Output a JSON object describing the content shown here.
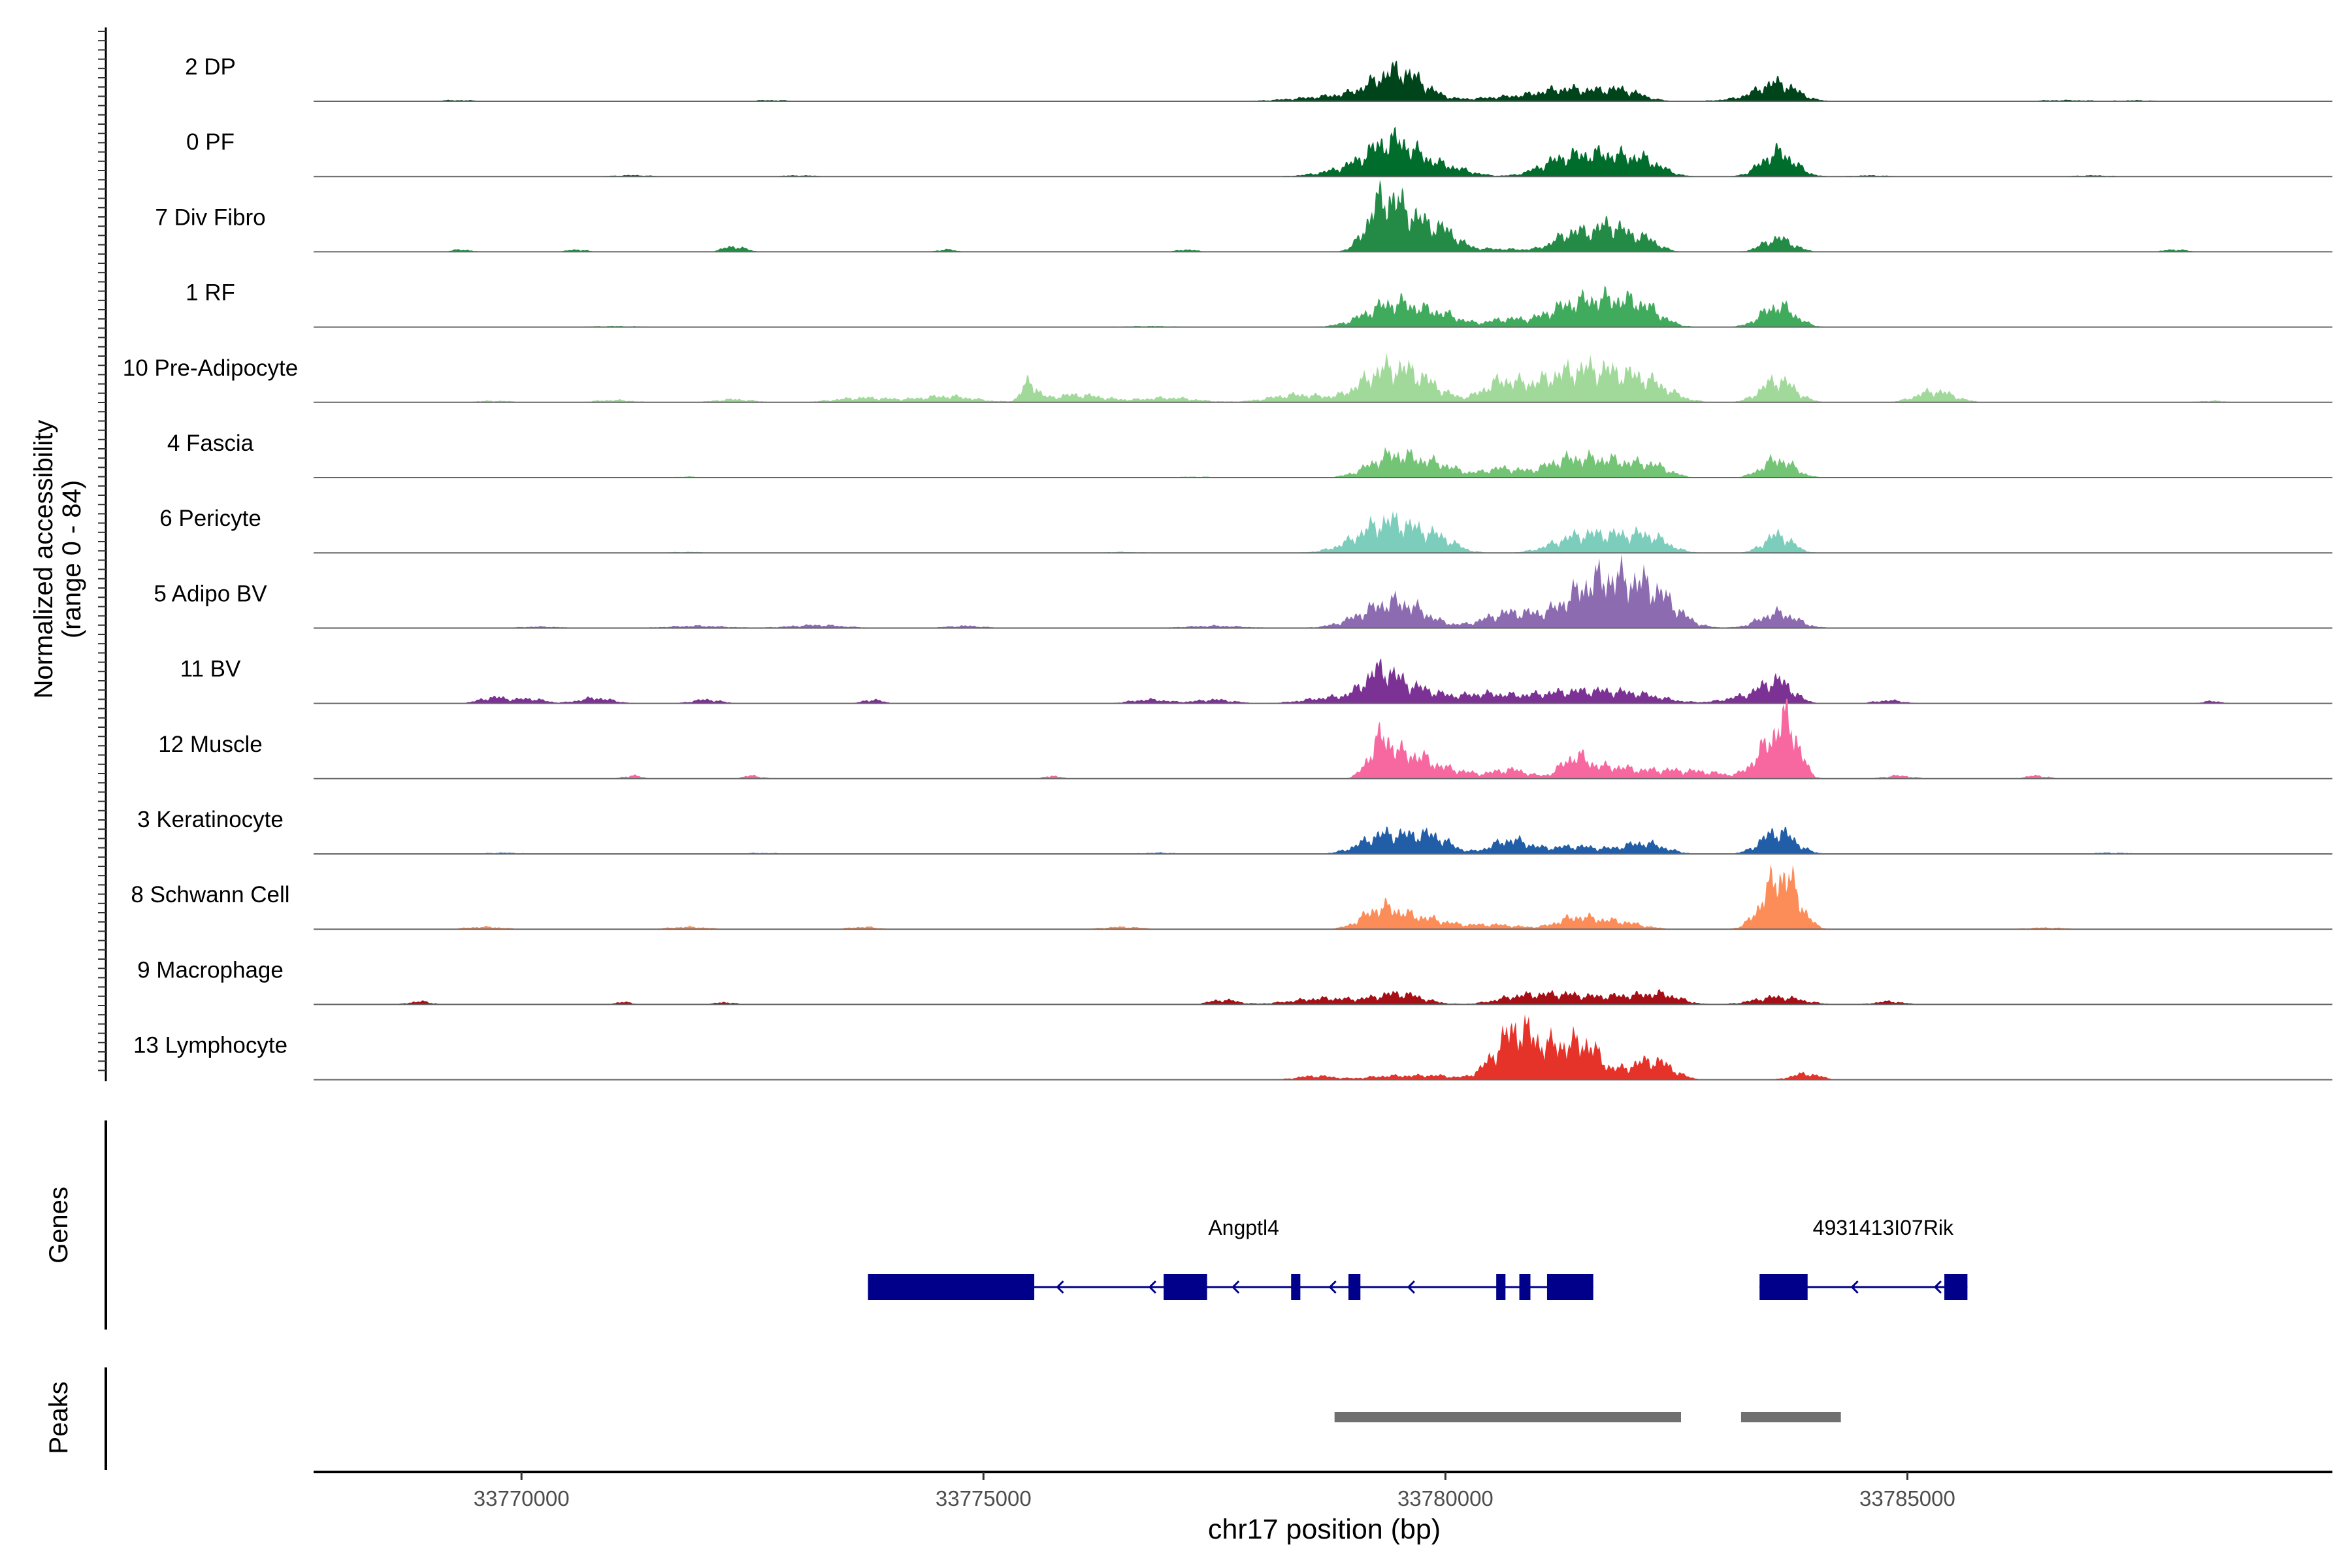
{
  "chart_data": {
    "type": "area",
    "title": "",
    "chromosome": "chr17",
    "xlabel": "chr17 position (bp)",
    "ylabel": "Normalized accessibility",
    "ylabel_range": "(range 0 - 84)",
    "xlim": [
      33767750,
      33789600
    ],
    "ylim": [
      0,
      84
    ],
    "x_ticks": [
      33770000,
      33775000,
      33780000,
      33785000
    ],
    "x_tick_labels": [
      "33770000",
      "33775000",
      "33780000",
      "33785000"
    ],
    "tracks": [
      {
        "name": "2 DP",
        "color": "#00441b",
        "peaks": [
          [
            33779500,
            36,
            260
          ],
          [
            33779000,
            8,
            500
          ],
          [
            33781300,
            16,
            300
          ],
          [
            33781900,
            14,
            220
          ],
          [
            33780600,
            5,
            300
          ],
          [
            33783600,
            22,
            200
          ],
          [
            33783350,
            4,
            300
          ]
        ],
        "noise": [
          [
            33769300,
            1.5,
            200
          ],
          [
            33772700,
            1.5,
            200
          ],
          [
            33786700,
            1.5,
            300
          ],
          [
            33787500,
            1.2,
            200
          ]
        ]
      },
      {
        "name": "0 PF",
        "color": "#006d2c",
        "peaks": [
          [
            33779450,
            40,
            250
          ],
          [
            33779100,
            12,
            350
          ],
          [
            33780000,
            12,
            250
          ],
          [
            33781300,
            24,
            260
          ],
          [
            33781750,
            22,
            220
          ],
          [
            33782150,
            20,
            200
          ],
          [
            33783600,
            32,
            180
          ]
        ],
        "noise": [
          [
            33771200,
            1.8,
            200
          ],
          [
            33773000,
            1.5,
            200
          ],
          [
            33784600,
            1.5,
            200
          ],
          [
            33787000,
            1.5,
            200
          ]
        ]
      },
      {
        "name": "7 Div Fibro",
        "color": "#238b45",
        "peaks": [
          [
            33779300,
            52,
            160
          ],
          [
            33779600,
            45,
            220
          ],
          [
            33780000,
            20,
            150
          ],
          [
            33781400,
            26,
            200
          ],
          [
            33781800,
            32,
            150
          ],
          [
            33782150,
            18,
            150
          ],
          [
            33783600,
            18,
            160
          ],
          [
            33780500,
            4,
            400
          ]
        ],
        "noise": [
          [
            33769350,
            3,
            100
          ],
          [
            33770600,
            3,
            100
          ],
          [
            33772300,
            7,
            120
          ],
          [
            33774600,
            3,
            100
          ],
          [
            33777200,
            3,
            100
          ],
          [
            33787900,
            3,
            120
          ]
        ]
      },
      {
        "name": "1 RF",
        "color": "#41ab5d",
        "peaks": [
          [
            33779450,
            32,
            300
          ],
          [
            33780000,
            12,
            200
          ],
          [
            33780650,
            10,
            200
          ],
          [
            33781300,
            24,
            250
          ],
          [
            33781750,
            30,
            250
          ],
          [
            33782150,
            22,
            200
          ],
          [
            33783600,
            28,
            180
          ]
        ],
        "noise": [
          [
            33771000,
            1.2,
            300
          ],
          [
            33776800,
            1.2,
            300
          ]
        ]
      },
      {
        "name": "10 Pre-Adipocyte",
        "color": "#a1d99b",
        "peaks": [
          [
            33779300,
            35,
            250
          ],
          [
            33779700,
            28,
            250
          ],
          [
            33780600,
            25,
            200
          ],
          [
            33781200,
            28,
            300
          ],
          [
            33781700,
            34,
            300
          ],
          [
            33782200,
            22,
            250
          ],
          [
            33783600,
            30,
            180
          ],
          [
            33778400,
            10,
            300
          ],
          [
            33785300,
            15,
            200
          ]
        ],
        "noise": [
          [
            33769700,
            2,
            200
          ],
          [
            33771000,
            3,
            200
          ],
          [
            33772300,
            4,
            200
          ],
          [
            33773700,
            6,
            300
          ],
          [
            33774600,
            8,
            300
          ],
          [
            33775500,
            25,
            80
          ],
          [
            33776000,
            10,
            300
          ],
          [
            33777000,
            6,
            300
          ],
          [
            33788300,
            2,
            150
          ]
        ]
      },
      {
        "name": "4 Fascia",
        "color": "#74c476",
        "peaks": [
          [
            33779450,
            30,
            260
          ],
          [
            33779950,
            14,
            200
          ],
          [
            33780600,
            12,
            200
          ],
          [
            33781300,
            22,
            250
          ],
          [
            33781800,
            20,
            250
          ],
          [
            33782250,
            14,
            180
          ],
          [
            33783600,
            24,
            170
          ]
        ],
        "noise": [
          [
            33771800,
            1.2,
            200
          ],
          [
            33777300,
            1.2,
            200
          ]
        ]
      },
      {
        "name": "6 Pericyte",
        "color": "#7ccdbb",
        "peaks": [
          [
            33779400,
            42,
            330
          ],
          [
            33779950,
            12,
            180
          ],
          [
            33781400,
            18,
            260
          ],
          [
            33781900,
            20,
            300
          ],
          [
            33782250,
            12,
            180
          ],
          [
            33783600,
            24,
            150
          ]
        ],
        "noise": [
          [
            33771800,
            1.2,
            200
          ],
          [
            33776500,
            1.2,
            200
          ]
        ]
      },
      {
        "name": "5 Adipo BV",
        "color": "#8c6bb1",
        "peaks": [
          [
            33779300,
            22,
            300
          ],
          [
            33779600,
            18,
            260
          ],
          [
            33780700,
            20,
            280
          ],
          [
            33781500,
            30,
            300
          ],
          [
            33781900,
            48,
            350
          ],
          [
            33782300,
            24,
            230
          ],
          [
            33783600,
            20,
            200
          ]
        ],
        "noise": [
          [
            33770200,
            2,
            200
          ],
          [
            33771900,
            3,
            300
          ],
          [
            33773200,
            4,
            300
          ],
          [
            33774800,
            3,
            200
          ],
          [
            33777500,
            3,
            300
          ]
        ]
      },
      {
        "name": "11 BV",
        "color": "#7b3294",
        "peaks": [
          [
            33779300,
            40,
            180
          ],
          [
            33779700,
            18,
            220
          ],
          [
            33778800,
            8,
            300
          ],
          [
            33780400,
            12,
            300
          ],
          [
            33781100,
            10,
            300
          ],
          [
            33781600,
            12,
            300
          ],
          [
            33782100,
            10,
            300
          ],
          [
            33783300,
            10,
            250
          ],
          [
            33783600,
            26,
            160
          ]
        ],
        "noise": [
          [
            33769700,
            8,
            150
          ],
          [
            33770100,
            6,
            150
          ],
          [
            33770800,
            7,
            180
          ],
          [
            33772000,
            5,
            150
          ],
          [
            33773800,
            5,
            100
          ],
          [
            33776800,
            5,
            200
          ],
          [
            33777500,
            5,
            200
          ],
          [
            33784800,
            4,
            150
          ],
          [
            33788300,
            3,
            100
          ]
        ]
      },
      {
        "name": "12 Muscle",
        "color": "#f768a1",
        "peaks": [
          [
            33779300,
            48,
            130
          ],
          [
            33779650,
            30,
            200
          ],
          [
            33780100,
            10,
            200
          ],
          [
            33780700,
            12,
            200
          ],
          [
            33781400,
            28,
            150
          ],
          [
            33781800,
            14,
            200
          ],
          [
            33782300,
            10,
            250
          ],
          [
            33783500,
            40,
            160
          ],
          [
            33783720,
            60,
            120
          ],
          [
            33782800,
            8,
            250
          ]
        ],
        "noise": [
          [
            33771200,
            4,
            100
          ],
          [
            33772500,
            4,
            100
          ],
          [
            33775750,
            4,
            80
          ],
          [
            33784900,
            4,
            150
          ],
          [
            33786400,
            4,
            120
          ]
        ]
      },
      {
        "name": "3 Keratinocyte",
        "color": "#225ea8",
        "peaks": [
          [
            33779350,
            26,
            250
          ],
          [
            33779850,
            22,
            200
          ],
          [
            33780700,
            18,
            200
          ],
          [
            33781400,
            10,
            300
          ],
          [
            33782150,
            14,
            220
          ],
          [
            33783600,
            30,
            180
          ]
        ],
        "noise": [
          [
            33769800,
            1.5,
            200
          ],
          [
            33772600,
            1.2,
            200
          ],
          [
            33776900,
            1.5,
            200
          ],
          [
            33787200,
            1.5,
            200
          ]
        ]
      },
      {
        "name": "8 Schwann Cell",
        "color": "#fc8d59",
        "peaks": [
          [
            33779300,
            26,
            200
          ],
          [
            33779750,
            14,
            250
          ],
          [
            33780500,
            6,
            300
          ],
          [
            33781400,
            14,
            200
          ],
          [
            33781850,
            10,
            250
          ],
          [
            33783500,
            32,
            150
          ],
          [
            33783700,
            56,
            150
          ]
        ],
        "noise": [
          [
            33769600,
            3,
            200
          ],
          [
            33771800,
            3,
            200
          ],
          [
            33773700,
            3,
            150
          ],
          [
            33776500,
            3,
            200
          ],
          [
            33786500,
            2,
            200
          ]
        ]
      },
      {
        "name": "9 Macrophage",
        "color": "#a50f15",
        "peaks": [
          [
            33778700,
            8,
            350
          ],
          [
            33779500,
            14,
            250
          ],
          [
            33780800,
            10,
            250
          ],
          [
            33781300,
            12,
            260
          ],
          [
            33781900,
            10,
            250
          ],
          [
            33782350,
            12,
            200
          ],
          [
            33783600,
            10,
            250
          ]
        ],
        "noise": [
          [
            33768900,
            4,
            120
          ],
          [
            33771100,
            3,
            100
          ],
          [
            33772200,
            3,
            100
          ],
          [
            33777600,
            6,
            150
          ],
          [
            33784800,
            4,
            150
          ]
        ]
      },
      {
        "name": "13 Lymphocyte",
        "color": "#e5332a",
        "peaks": [
          [
            33780600,
            30,
            180
          ],
          [
            33780800,
            45,
            150
          ],
          [
            33781050,
            28,
            150
          ],
          [
            33781300,
            34,
            150
          ],
          [
            33781550,
            36,
            130
          ],
          [
            33782000,
            14,
            250
          ],
          [
            33782300,
            18,
            180
          ],
          [
            33779400,
            5,
            250
          ],
          [
            33779900,
            5,
            200
          ],
          [
            33778600,
            5,
            200
          ],
          [
            33783900,
            8,
            150
          ]
        ],
        "noise": []
      }
    ],
    "genes": [
      {
        "name": "Angptl4",
        "strand": "-",
        "start": 33773750,
        "end": 33781600,
        "exons": [
          [
            33773750,
            33775550
          ],
          [
            33776950,
            33777420
          ],
          [
            33778330,
            33778430
          ],
          [
            33778950,
            33779080
          ],
          [
            33780550,
            33780650
          ],
          [
            33780800,
            33780920
          ],
          [
            33781100,
            33781600
          ]
        ],
        "arrows": [
          33775800,
          33776800,
          33777700,
          33778750,
          33779600
        ]
      },
      {
        "name": "4931413I07Rik",
        "strand": "-",
        "start": 33783400,
        "end": 33785650,
        "exons": [
          [
            33783400,
            33783920
          ],
          [
            33785400,
            33785650
          ]
        ],
        "arrows": [
          33784400,
          33785300
        ]
      }
    ],
    "peak_regions": [
      [
        33778800,
        33782550
      ],
      [
        33783200,
        33784280
      ]
    ],
    "panel_labels": {
      "genes": "Genes",
      "peaks": "Peaks"
    }
  }
}
